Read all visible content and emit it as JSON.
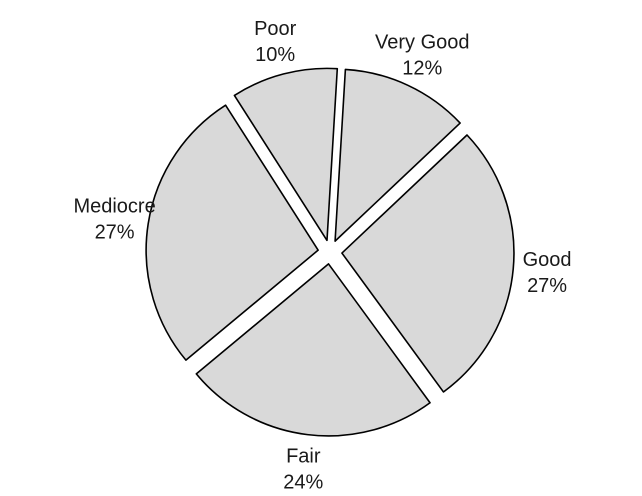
{
  "chart_data": {
    "type": "pie",
    "title": "",
    "exploded": true,
    "slices": [
      {
        "label": "Very Good",
        "value": 12,
        "value_label": "12%"
      },
      {
        "label": "Good",
        "value": 27,
        "value_label": "27%"
      },
      {
        "label": "Fair",
        "value": 24,
        "value_label": "24%"
      },
      {
        "label": "Mediocre",
        "value": 27,
        "value_label": "27%"
      },
      {
        "label": "Poor",
        "value": 10,
        "value_label": "10%"
      }
    ],
    "colors": {
      "fill": "#d9d9d9",
      "stroke": "#000000",
      "text": "#1a1a1a"
    }
  }
}
